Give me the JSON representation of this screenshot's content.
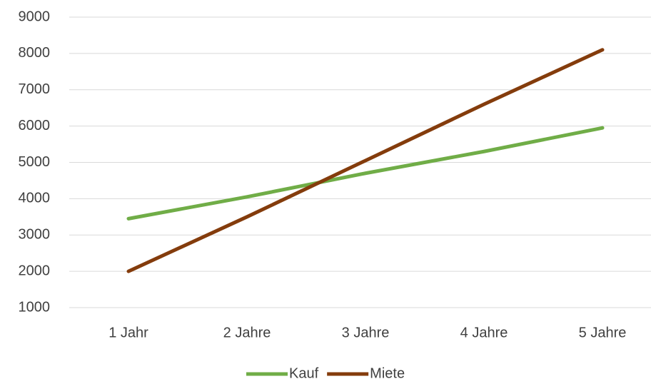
{
  "chart_data": {
    "type": "line",
    "categories": [
      "1 Jahr",
      "2 Jahre",
      "3 Jahre",
      "4 Jahre",
      "5 Jahre"
    ],
    "series": [
      {
        "name": "Kauf",
        "color": "#70ad47",
        "values": [
          3450,
          4050,
          4700,
          5300,
          5950
        ]
      },
      {
        "name": "Miete",
        "color": "#843c0c",
        "values": [
          2000,
          3500,
          5050,
          6600,
          8100
        ]
      }
    ],
    "ylim": [
      1000,
      9000
    ],
    "yticks": [
      1000,
      2000,
      3000,
      4000,
      5000,
      6000,
      7000,
      8000,
      9000
    ],
    "grid": true,
    "legend": "bottom"
  }
}
